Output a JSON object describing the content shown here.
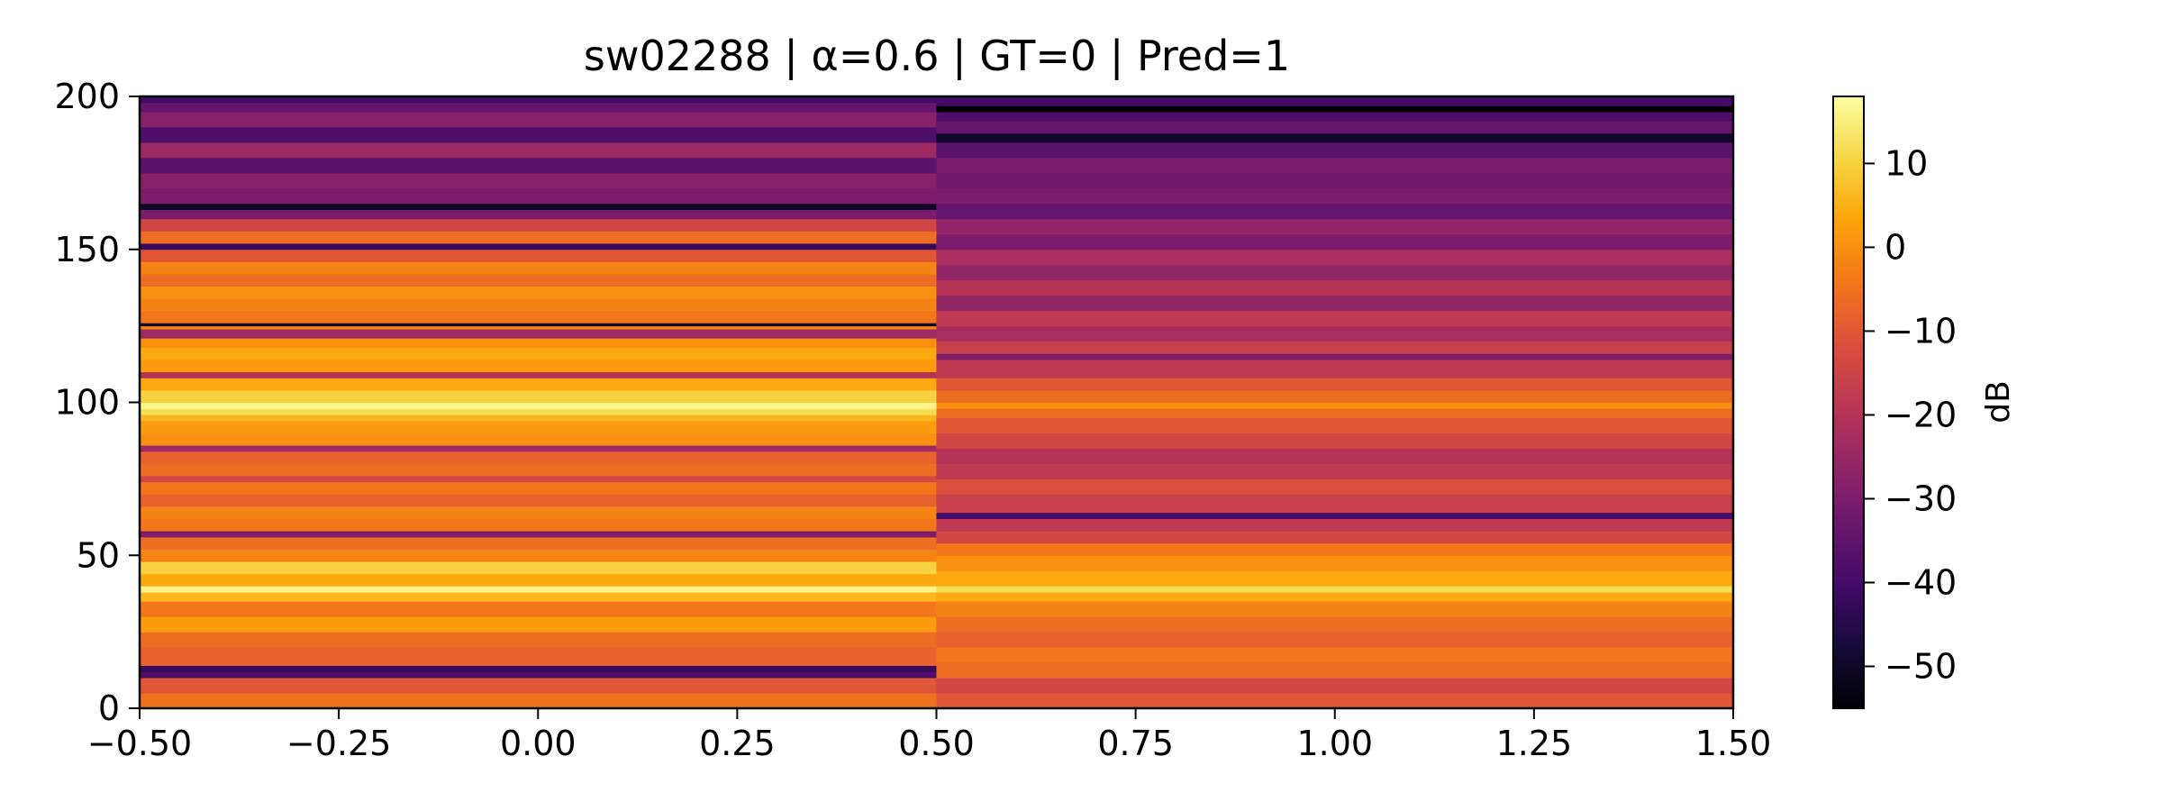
{
  "chart_data": {
    "type": "heatmap",
    "title": "sw02288 | α=0.6 | GT=0 | Pred=1",
    "xlabel": "",
    "ylabel": "",
    "xlim": [
      -0.5,
      1.5
    ],
    "ylim": [
      0,
      200
    ],
    "x_ticks": [
      "−0.50",
      "−0.25",
      "0.00",
      "0.25",
      "0.50",
      "0.75",
      "1.00",
      "1.25",
      "1.50"
    ],
    "y_ticks": [
      "0",
      "50",
      "100",
      "150",
      "200"
    ],
    "colormap": "inferno",
    "colorbar": {
      "label": "dB",
      "range": [
        -55,
        18
      ],
      "ticks": [
        "−50",
        "−40",
        "−30",
        "−20",
        "−10",
        "0",
        "10"
      ]
    },
    "columns": [
      {
        "x_range": [
          -0.5,
          0.5
        ],
        "description_values_db_by_freq_bin": [
          [
            0,
            -5
          ],
          [
            5,
            -10
          ],
          [
            10,
            -38
          ],
          [
            12,
            -42
          ],
          [
            14,
            -8
          ],
          [
            20,
            -6
          ],
          [
            25,
            2
          ],
          [
            30,
            -4
          ],
          [
            35,
            6
          ],
          [
            38,
            16
          ],
          [
            40,
            4
          ],
          [
            44,
            10
          ],
          [
            48,
            -2
          ],
          [
            52,
            -6
          ],
          [
            56,
            -30
          ],
          [
            58,
            -4
          ],
          [
            62,
            -2
          ],
          [
            66,
            -8
          ],
          [
            70,
            -4
          ],
          [
            74,
            -14
          ],
          [
            76,
            -6
          ],
          [
            80,
            -8
          ],
          [
            84,
            -24
          ],
          [
            86,
            0
          ],
          [
            90,
            2
          ],
          [
            94,
            6
          ],
          [
            96,
            12
          ],
          [
            98,
            16
          ],
          [
            100,
            10
          ],
          [
            104,
            4
          ],
          [
            108,
            -20
          ],
          [
            110,
            2
          ],
          [
            114,
            4
          ],
          [
            118,
            0
          ],
          [
            121,
            -24
          ],
          [
            124,
            -2
          ],
          [
            125,
            -50
          ],
          [
            126,
            -4
          ],
          [
            130,
            -2
          ],
          [
            134,
            0
          ],
          [
            138,
            -6
          ],
          [
            142,
            -2
          ],
          [
            146,
            -10
          ],
          [
            150,
            -42
          ],
          [
            152,
            -6
          ],
          [
            156,
            -14
          ],
          [
            160,
            -30
          ],
          [
            163,
            -50
          ],
          [
            165,
            -30
          ],
          [
            170,
            -28
          ],
          [
            175,
            -36
          ],
          [
            180,
            -24
          ],
          [
            185,
            -38
          ],
          [
            190,
            -28
          ],
          [
            195,
            -34
          ],
          [
            198,
            -40
          ],
          [
            200,
            -36
          ]
        ]
      },
      {
        "x_range": [
          0.5,
          1.5
        ],
        "description_values_db_by_freq_bin": [
          [
            0,
            -10
          ],
          [
            5,
            -14
          ],
          [
            10,
            -6
          ],
          [
            15,
            -4
          ],
          [
            20,
            -8
          ],
          [
            25,
            -6
          ],
          [
            30,
            -2
          ],
          [
            35,
            4
          ],
          [
            38,
            12
          ],
          [
            40,
            4
          ],
          [
            45,
            0
          ],
          [
            50,
            -4
          ],
          [
            54,
            -14
          ],
          [
            58,
            -18
          ],
          [
            62,
            -40
          ],
          [
            64,
            -16
          ],
          [
            70,
            -12
          ],
          [
            75,
            -18
          ],
          [
            80,
            -20
          ],
          [
            85,
            -14
          ],
          [
            90,
            -10
          ],
          [
            95,
            -6
          ],
          [
            98,
            0
          ],
          [
            100,
            -6
          ],
          [
            104,
            -10
          ],
          [
            108,
            -18
          ],
          [
            114,
            -30
          ],
          [
            116,
            -16
          ],
          [
            120,
            -22
          ],
          [
            125,
            -18
          ],
          [
            130,
            -26
          ],
          [
            135,
            -20
          ],
          [
            140,
            -26
          ],
          [
            145,
            -22
          ],
          [
            150,
            -30
          ],
          [
            155,
            -26
          ],
          [
            160,
            -34
          ],
          [
            165,
            -30
          ],
          [
            170,
            -32
          ],
          [
            175,
            -30
          ],
          [
            180,
            -36
          ],
          [
            185,
            -50
          ],
          [
            188,
            -34
          ],
          [
            192,
            -38
          ],
          [
            195,
            -55
          ],
          [
            197,
            -40
          ],
          [
            200,
            -38
          ]
        ]
      }
    ]
  }
}
